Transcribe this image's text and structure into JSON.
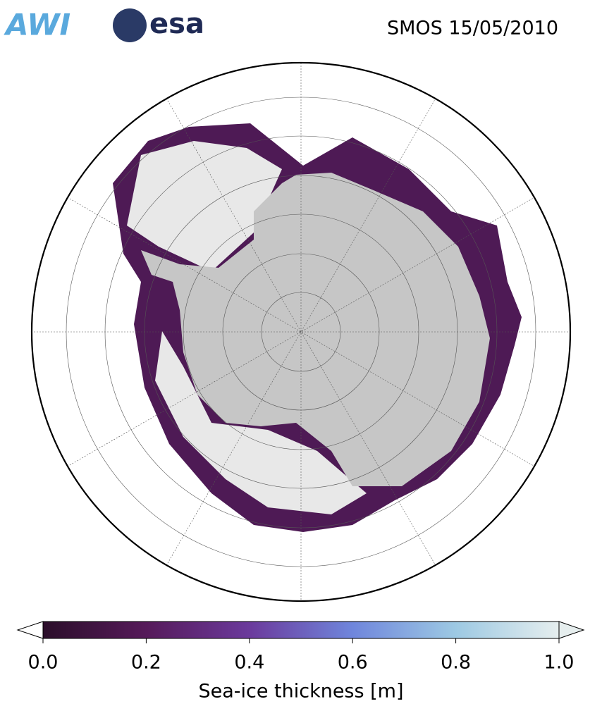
{
  "header": {
    "logos": [
      "AWI",
      "esa"
    ],
    "title": "SMOS 15/05/2010"
  },
  "colorbar": {
    "label": "Sea-ice thickness [m]",
    "lim": [
      0,
      1
    ],
    "ticks": [
      {
        "value": 0,
        "label": "0.0"
      },
      {
        "value": 0.2,
        "label": "0.2"
      },
      {
        "value": 0.4,
        "label": "0.4"
      },
      {
        "value": 0.6,
        "label": "0.6"
      },
      {
        "value": 0.8,
        "label": "0.8"
      },
      {
        "value": 1,
        "label": "1.0"
      }
    ],
    "colormap": [
      "#2b0e2a",
      "#561a5a",
      "#6b3a9c",
      "#6f86dc",
      "#9dc9e3",
      "#e6eeee"
    ]
  }
}
